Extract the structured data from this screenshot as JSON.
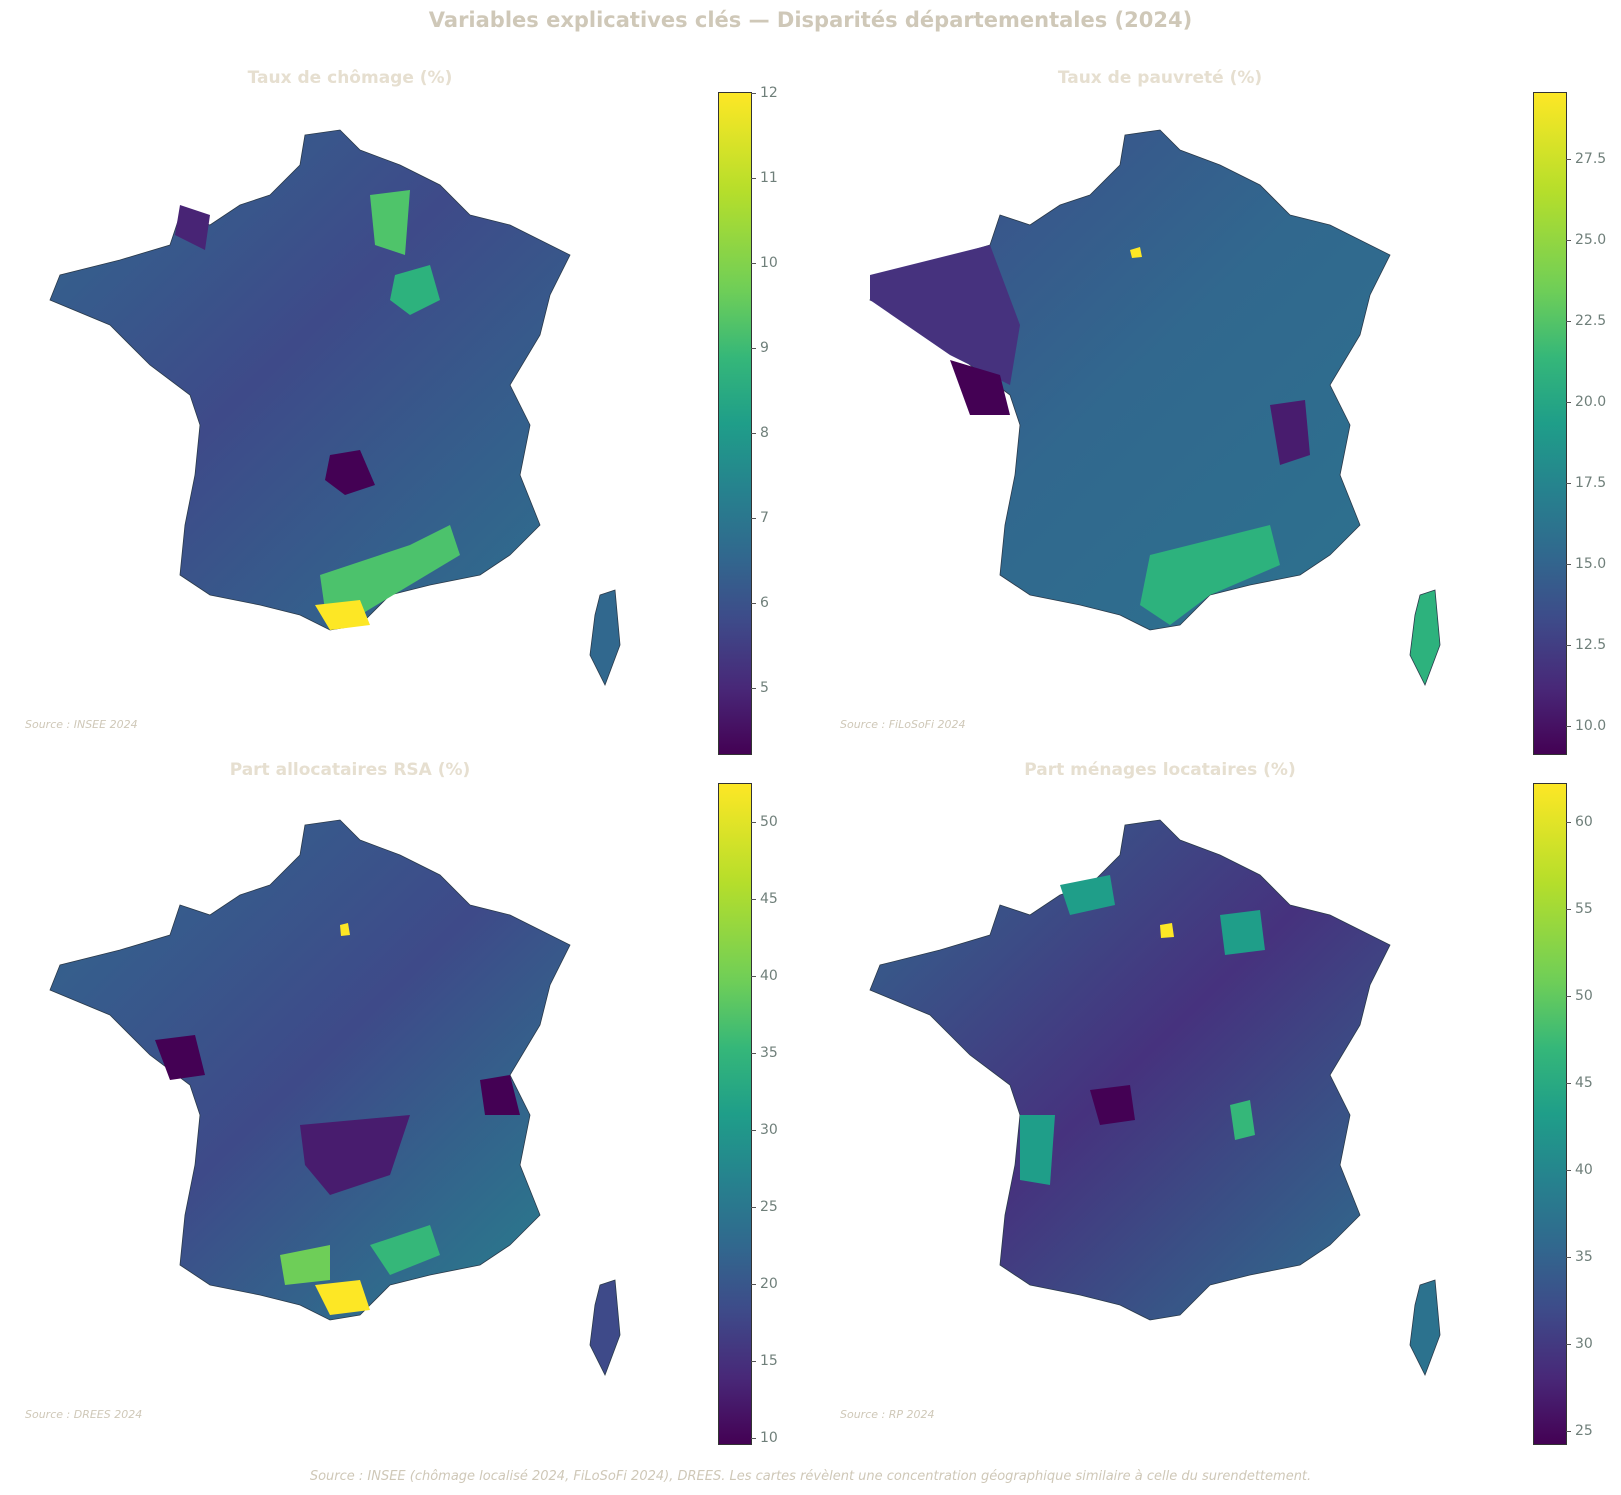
{
  "title": "Variables explicatives clés — Disparités départementales (2024)",
  "footer": "Source : INSEE (chômage localisé 2024, FiLoSoFi 2024), DREES. Les cartes révèlent une concentration géographique similaire à celle du surendettement.",
  "panels": [
    {
      "title": "Taux de chômage (%)",
      "source": "Source : INSEE 2024",
      "colormap": "viridis",
      "range": [
        4.2,
        12
      ],
      "ticks": [
        "12",
        "11",
        "10",
        "9",
        "8",
        "7",
        "6",
        "5"
      ],
      "tick_values": [
        12,
        11,
        10,
        9,
        8,
        7,
        6,
        5
      ]
    },
    {
      "title": "Taux de pauvreté (%)",
      "source": "Source : FiLoSoFi 2024",
      "colormap": "viridis",
      "range": [
        9.2,
        29.6
      ],
      "ticks": [
        "27.5",
        "25.0",
        "22.5",
        "20.0",
        "17.5",
        "15.0",
        "12.5",
        "10.0"
      ],
      "tick_values": [
        27.5,
        25.0,
        22.5,
        20.0,
        17.5,
        15.0,
        12.5,
        10.0
      ]
    },
    {
      "title": "Part allocataires RSA (%)",
      "source": "Source : DREES 2024",
      "colormap": "viridis",
      "range": [
        9.3,
        52.5
      ],
      "ticks": [
        "50",
        "45",
        "40",
        "35",
        "30",
        "25",
        "20",
        "15",
        "10"
      ],
      "tick_values": [
        50,
        45,
        40,
        35,
        30,
        25,
        20,
        15,
        10
      ]
    },
    {
      "title": "Part ménages locataires (%)",
      "source": "Source : RP 2024",
      "colormap": "viridis",
      "range": [
        23.8,
        61.8
      ],
      "ticks": [
        "60",
        "55",
        "50",
        "45",
        "40",
        "35",
        "30",
        "25"
      ],
      "tick_values": [
        60,
        55,
        50,
        45,
        40,
        35,
        30,
        25
      ]
    }
  ],
  "colors": {
    "viridis_low": "#440154",
    "viridis_mid": "#21918c",
    "viridis_high": "#fde725"
  }
}
